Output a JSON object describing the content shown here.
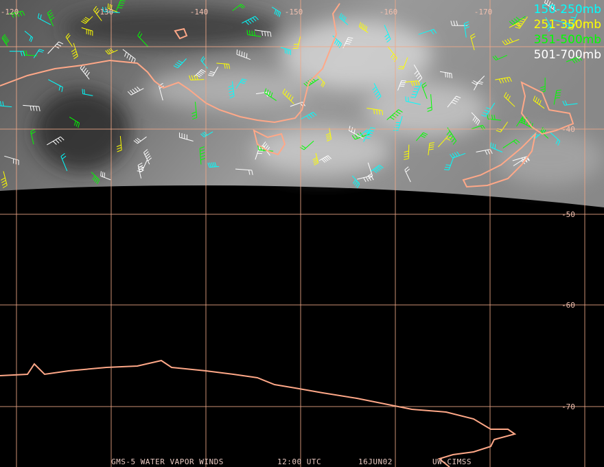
{
  "map": {
    "longitude_labels": [
      "-120",
      "-130",
      "-140",
      "-150",
      "-160",
      "-170"
    ],
    "latitude_labels": [
      "-40",
      "-50",
      "-60",
      "-70"
    ],
    "legend": [
      "150-250mb",
      "251-350mb",
      "351-500mb",
      "501-700mb"
    ],
    "footer": [
      "GMS-5 WATER VAPOR WINDS",
      "12:00 UTC",
      "16JUN02",
      "UW-CIMSS"
    ]
  }
}
